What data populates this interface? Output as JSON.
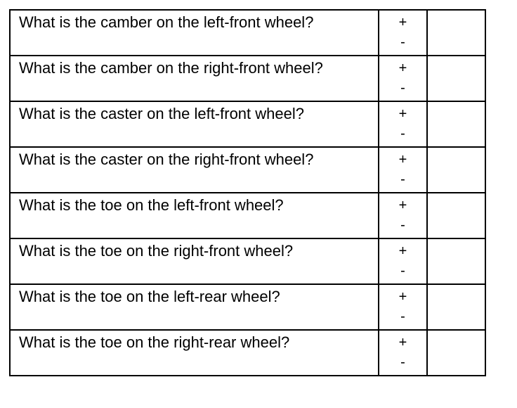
{
  "rows": [
    {
      "question": "What is the camber on the left-front wheel?",
      "plus": "+",
      "minus": "-",
      "answer": ""
    },
    {
      "question": "What is the camber on the right-front wheel?",
      "plus": "+",
      "minus": "-",
      "answer": ""
    },
    {
      "question": "What is the caster on the left-front wheel?",
      "plus": "+",
      "minus": "-",
      "answer": ""
    },
    {
      "question": "What is the caster on the right-front wheel?",
      "plus": "+",
      "minus": "-",
      "answer": ""
    },
    {
      "question": "What is the toe on the left-front wheel?",
      "plus": "+",
      "minus": "-",
      "answer": ""
    },
    {
      "question": "What is the toe on the right-front wheel?",
      "plus": "+",
      "minus": "-",
      "answer": ""
    },
    {
      "question": "What is the toe on the left-rear wheel?",
      "plus": "+",
      "minus": "-",
      "answer": ""
    },
    {
      "question": "What is the toe on the right-rear wheel?",
      "plus": "+",
      "minus": "-",
      "answer": ""
    }
  ]
}
